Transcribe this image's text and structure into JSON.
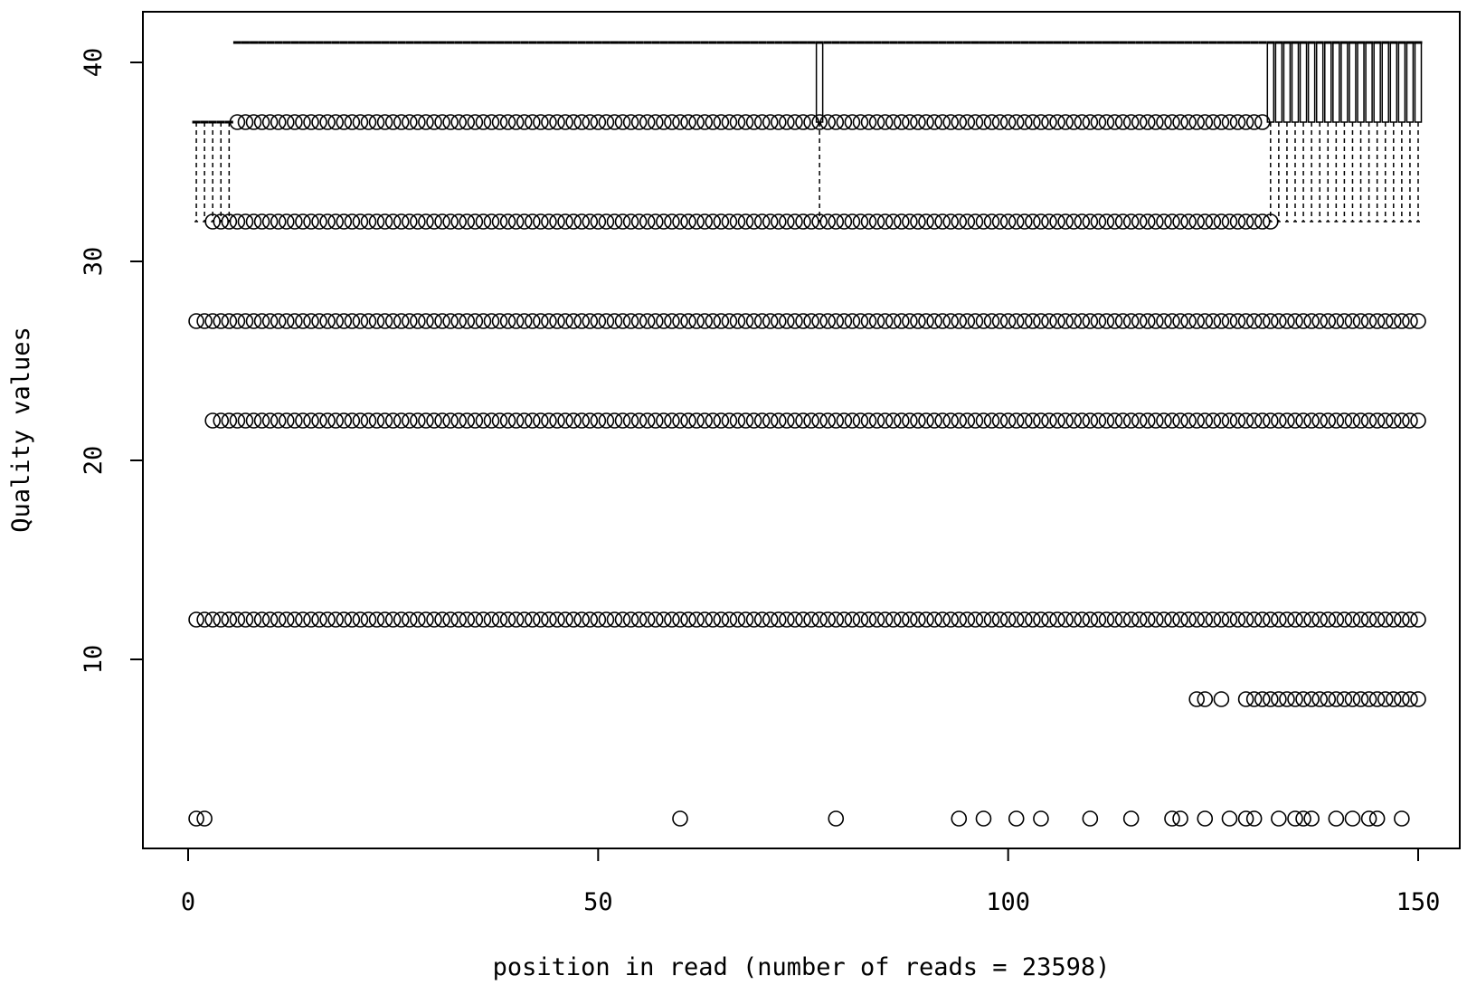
{
  "chart_data": {
    "type": "boxplot",
    "title": "",
    "xlabel": "position in read (number of reads = 23598)",
    "ylabel": "Quality values",
    "xlim": [
      -10,
      155
    ],
    "ylim": [
      1,
      42
    ],
    "x_ticks": [
      0,
      50,
      100,
      150
    ],
    "y_ticks": [
      10,
      20,
      30,
      40
    ],
    "positions": [
      1,
      150
    ],
    "box_groups": [
      {
        "from": 1,
        "to": 5,
        "q1": 37,
        "median": 37,
        "q3": 37,
        "upper_whisker": 37,
        "lower_whisker": 32
      },
      {
        "from": 6,
        "to": 76,
        "q1": 41,
        "median": 41,
        "q3": 41,
        "upper_whisker": 41,
        "lower_whisker": 41
      },
      {
        "from": 77,
        "to": 77,
        "q1": 37,
        "median": 41,
        "q3": 41,
        "upper_whisker": 41,
        "lower_whisker": 32
      },
      {
        "from": 78,
        "to": 131,
        "q1": 41,
        "median": 41,
        "q3": 41,
        "upper_whisker": 41,
        "lower_whisker": 41
      },
      {
        "from": 132,
        "to": 150,
        "q1": 37,
        "median": 41,
        "q3": 41,
        "upper_whisker": 41,
        "lower_whisker": 32
      }
    ],
    "outlier_rows": [
      {
        "y": 37,
        "from": 6,
        "to": 131
      },
      {
        "y": 32,
        "from": 3,
        "to": 132
      },
      {
        "y": 27,
        "from": 1,
        "to": 150
      },
      {
        "y": 22,
        "from": 3,
        "to": 150
      },
      {
        "y": 12,
        "from": 1,
        "to": 150
      }
    ],
    "outlier_points": [
      {
        "y": 8,
        "x": [
          123,
          124,
          126,
          129,
          130,
          131,
          132,
          133,
          134,
          135,
          136,
          137,
          138,
          139,
          140,
          141,
          142,
          143,
          144,
          145,
          146,
          147,
          148,
          149,
          150
        ]
      },
      {
        "y": 2,
        "x": [
          1,
          2,
          60,
          79,
          94,
          97,
          101,
          104,
          110,
          115,
          120,
          121,
          124,
          127,
          129,
          130,
          133,
          135,
          136,
          137,
          140,
          142,
          144,
          145,
          148
        ]
      }
    ]
  }
}
